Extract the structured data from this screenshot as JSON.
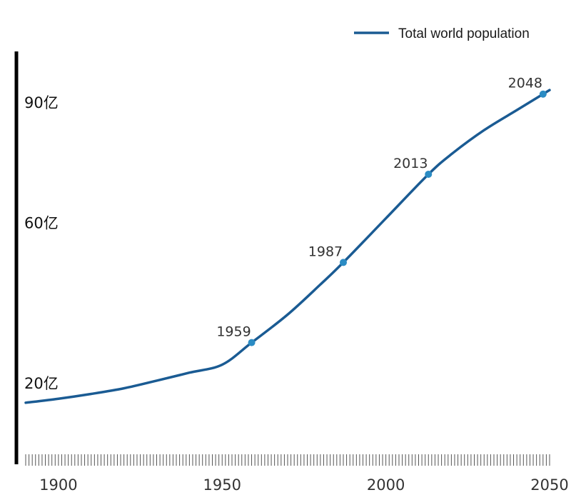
{
  "chart_data": {
    "type": "line",
    "title": "",
    "xlabel": "",
    "ylabel": "",
    "xlim": [
      1890,
      2050
    ],
    "ylim": [
      0,
      10.3
    ],
    "x_ticks": [
      1900,
      1950,
      2000,
      2050
    ],
    "y_ticks": [
      {
        "value": 2,
        "label": "20亿"
      },
      {
        "value": 6,
        "label": "60亿"
      },
      {
        "value": 9,
        "label": "90亿"
      }
    ],
    "legend": {
      "position": "top-right"
    },
    "grid": false,
    "series": [
      {
        "name": "Total world population",
        "color": "#1a5b93",
        "x": [
          1890,
          1900,
          1910,
          1920,
          1930,
          1940,
          1950,
          1959,
          1970,
          1980,
          1987,
          2000,
          2013,
          2020,
          2030,
          2040,
          2048,
          2050
        ],
        "y": [
          1.5,
          1.6,
          1.72,
          1.86,
          2.05,
          2.25,
          2.45,
          3.0,
          3.7,
          4.45,
          5.0,
          6.1,
          7.2,
          7.7,
          8.3,
          8.8,
          9.2,
          9.3
        ]
      }
    ],
    "highlighted_points": [
      {
        "x": 1959,
        "y": 3.0,
        "label": "1959"
      },
      {
        "x": 1987,
        "y": 5.0,
        "label": "1987"
      },
      {
        "x": 2013,
        "y": 7.2,
        "label": "2013"
      },
      {
        "x": 2048,
        "y": 9.2,
        "label": "2048"
      }
    ],
    "marker_color": "#2b8cc4"
  }
}
